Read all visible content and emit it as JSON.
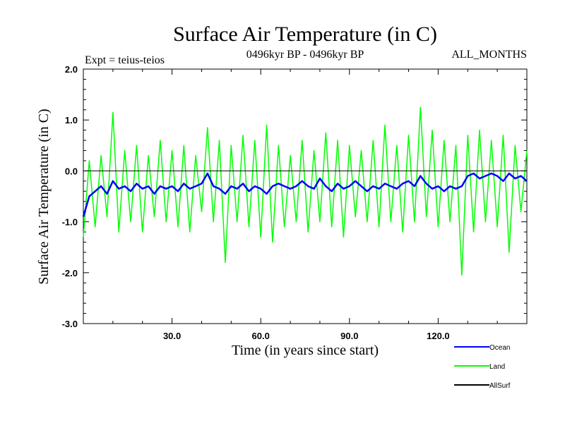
{
  "chart_data": {
    "type": "line",
    "title": "Surface Air Temperature (in C)",
    "subtitle_left": "Expt = teius-teios",
    "subtitle_center": "0496kyr BP - 0496kyr BP",
    "subtitle_right": "ALL_MONTHS",
    "xlabel": "Time (in years since start)",
    "ylabel": "Surface Air Temperature (in C)",
    "xlim": [
      0,
      150
    ],
    "ylim": [
      -3.0,
      2.0
    ],
    "x_ticks": [
      30,
      60,
      90,
      120
    ],
    "x_tick_labels": [
      "30.0",
      "60.0",
      "90.0",
      "120.0"
    ],
    "y_ticks": [
      2.0,
      1.0,
      0.0,
      -1.0,
      -2.0,
      -3.0
    ],
    "y_tick_labels": [
      "2.0",
      "1.0",
      "0.0",
      "-1.0",
      "-2.0",
      "-3.0"
    ],
    "zero_line": 0.0,
    "legend_position": "bottom-right, outside plot",
    "series": [
      {
        "name": "Ocean",
        "color": "#0000ff",
        "x": [
          0,
          2,
          4,
          6,
          8,
          10,
          12,
          14,
          16,
          18,
          20,
          22,
          24,
          26,
          28,
          30,
          32,
          34,
          36,
          38,
          40,
          42,
          44,
          46,
          48,
          50,
          52,
          54,
          56,
          58,
          60,
          62,
          64,
          66,
          68,
          70,
          72,
          74,
          76,
          78,
          80,
          82,
          84,
          86,
          88,
          90,
          92,
          94,
          96,
          98,
          100,
          102,
          104,
          106,
          108,
          110,
          112,
          114,
          116,
          118,
          120,
          122,
          124,
          126,
          128,
          130,
          132,
          134,
          136,
          138,
          140,
          142,
          144,
          146,
          148,
          150
        ],
        "values": [
          -0.9,
          -0.5,
          -0.4,
          -0.3,
          -0.45,
          -0.2,
          -0.35,
          -0.3,
          -0.4,
          -0.25,
          -0.35,
          -0.3,
          -0.45,
          -0.3,
          -0.35,
          -0.3,
          -0.4,
          -0.25,
          -0.35,
          -0.3,
          -0.25,
          -0.05,
          -0.3,
          -0.35,
          -0.45,
          -0.3,
          -0.35,
          -0.25,
          -0.4,
          -0.3,
          -0.35,
          -0.45,
          -0.3,
          -0.25,
          -0.3,
          -0.35,
          -0.3,
          -0.2,
          -0.3,
          -0.35,
          -0.15,
          -0.3,
          -0.4,
          -0.25,
          -0.35,
          -0.3,
          -0.2,
          -0.3,
          -0.4,
          -0.3,
          -0.35,
          -0.25,
          -0.3,
          -0.35,
          -0.25,
          -0.2,
          -0.3,
          -0.1,
          -0.25,
          -0.35,
          -0.3,
          -0.4,
          -0.3,
          -0.35,
          -0.3,
          -0.1,
          -0.05,
          -0.15,
          -0.1,
          -0.05,
          -0.1,
          -0.2,
          -0.05,
          -0.15,
          -0.1,
          -0.2
        ]
      },
      {
        "name": "Land",
        "color": "#00ff00",
        "x": [
          0,
          2,
          4,
          6,
          8,
          10,
          12,
          14,
          16,
          18,
          20,
          22,
          24,
          26,
          28,
          30,
          32,
          34,
          36,
          38,
          40,
          42,
          44,
          46,
          48,
          50,
          52,
          54,
          56,
          58,
          60,
          62,
          64,
          66,
          68,
          70,
          72,
          74,
          76,
          78,
          80,
          82,
          84,
          86,
          88,
          90,
          92,
          94,
          96,
          98,
          100,
          102,
          104,
          106,
          108,
          110,
          112,
          114,
          116,
          118,
          120,
          122,
          124,
          126,
          128,
          130,
          132,
          134,
          136,
          138,
          140,
          142,
          144,
          146,
          148,
          150
        ],
        "values": [
          -1.3,
          0.2,
          -1.1,
          0.3,
          -0.9,
          1.15,
          -1.2,
          0.4,
          -1.0,
          0.5,
          -1.2,
          0.3,
          -0.9,
          0.6,
          -1.0,
          0.4,
          -1.1,
          0.5,
          -1.2,
          0.3,
          -0.8,
          0.85,
          -1.0,
          0.6,
          -1.8,
          0.5,
          -1.0,
          0.7,
          -1.1,
          0.6,
          -1.3,
          0.9,
          -1.4,
          0.5,
          -1.1,
          0.3,
          -1.0,
          0.6,
          -1.2,
          0.4,
          -1.0,
          0.75,
          -1.1,
          0.6,
          -1.3,
          0.5,
          -0.9,
          0.4,
          -1.0,
          0.6,
          -1.1,
          0.9,
          -1.0,
          0.5,
          -1.2,
          0.7,
          -1.0,
          1.25,
          -0.9,
          0.8,
          -1.1,
          0.6,
          -1.0,
          0.5,
          -2.05,
          0.7,
          -1.2,
          0.8,
          -1.0,
          0.6,
          -1.1,
          0.7,
          -1.6,
          0.5,
          -0.8,
          0.4
        ]
      },
      {
        "name": "AllSurf",
        "color": "#000000",
        "x": [],
        "values": []
      }
    ]
  }
}
